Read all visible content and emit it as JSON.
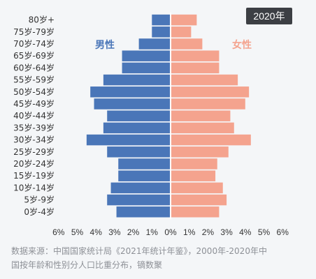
{
  "chart_data": {
    "type": "bar",
    "orientation": "horizontal-population-pyramid",
    "badge": "2020年",
    "categories": [
      "80岁+",
      "75岁-79岁",
      "70岁-74岁",
      "65岁-69岁",
      "60岁-64岁",
      "55岁-59岁",
      "50岁-54岁",
      "45岁-49岁",
      "40岁-44岁",
      "35岁-39岁",
      "30岁-34岁",
      "25岁-29岁",
      "20岁-24岁",
      "15岁-19岁",
      "10岁-14岁",
      "5岁-9岁",
      "0岁-4岁"
    ],
    "series": [
      {
        "name": "男性",
        "side": "left",
        "color": "#4a76b8",
        "values": [
          1.0,
          1.0,
          1.7,
          2.6,
          2.6,
          3.6,
          4.3,
          4.1,
          3.4,
          3.6,
          4.5,
          3.4,
          2.8,
          2.8,
          3.2,
          3.4,
          2.9
        ]
      },
      {
        "name": "女性",
        "side": "right",
        "color": "#f4a38e",
        "values": [
          1.4,
          1.1,
          1.7,
          2.6,
          2.6,
          3.6,
          4.2,
          4.0,
          3.2,
          3.4,
          4.3,
          3.1,
          2.5,
          2.4,
          2.8,
          3.0,
          2.6
        ]
      }
    ],
    "xticks": [
      "6%",
      "5%",
      "4%",
      "3%",
      "2%",
      "1%",
      "0%",
      "1%",
      "2%",
      "3%",
      "4%",
      "5%",
      "6%"
    ],
    "xlim": [
      -6,
      6
    ],
    "grid": false
  },
  "footer": {
    "source_line1": "数据来源：中国国家统计局《2021年统计年鉴》，2000年-2020年中",
    "source_line2": "国按年龄和性别分人口比重分布，镝数聚"
  }
}
